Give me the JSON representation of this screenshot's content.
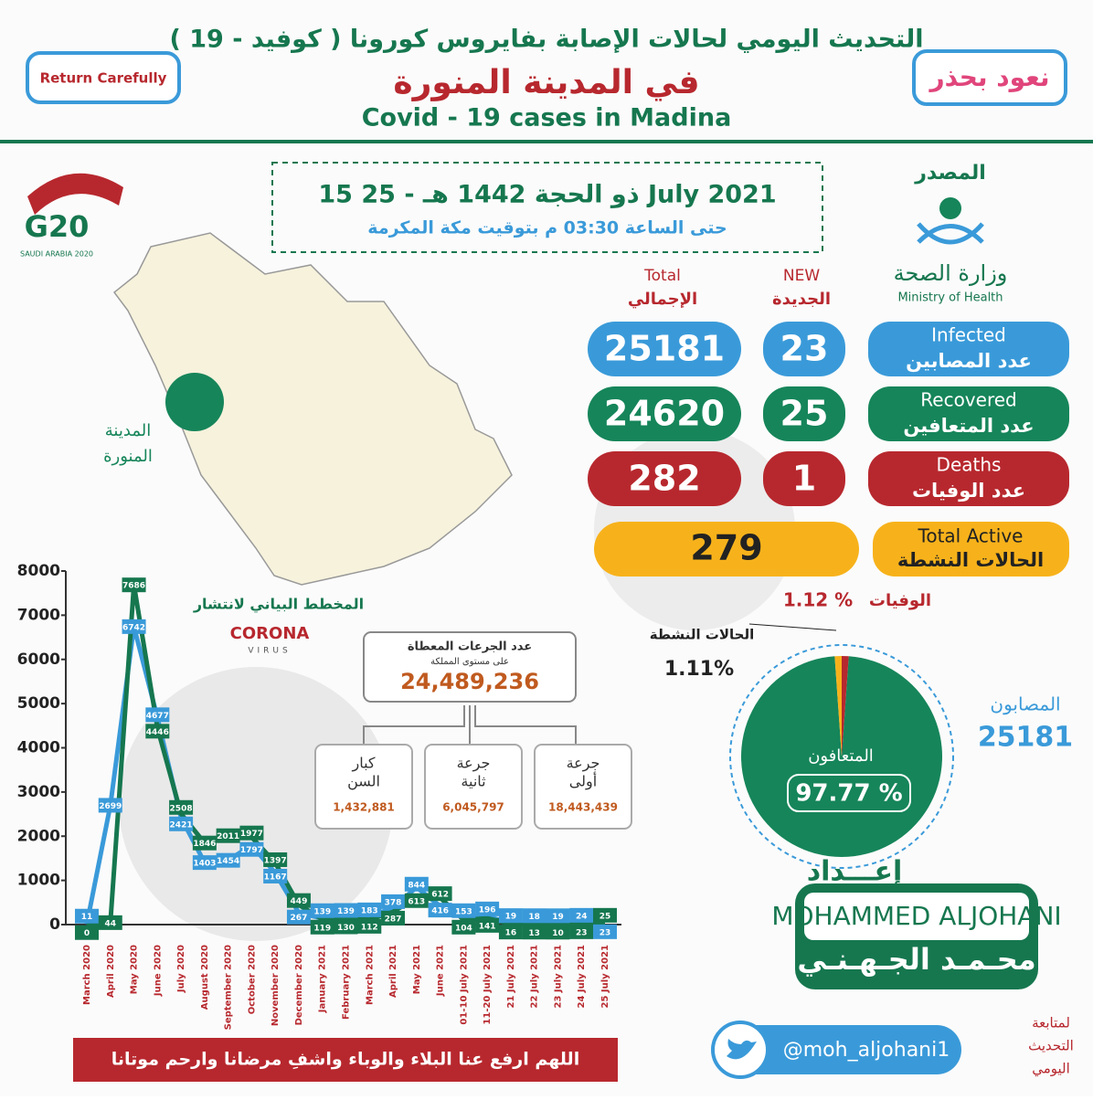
{
  "header": {
    "title_ar": "التحديث اليومي لحالات الإصابة بفايروس كورونا ( كوفيد - 19 )",
    "subtitle_ar": "في المدينة المنورة",
    "title_en": "Covid - 19 cases in Madina",
    "badge_en": "Return Carefully",
    "badge_ar": "نعود بحذر"
  },
  "g20": {
    "logo": "G20",
    "caption": "SAUDI ARABIA 2020"
  },
  "date": {
    "line1": "15 ذو الحجة 1442 هـ - 25 July 2021",
    "line2": "حتى الساعة 03:30 م بتوقيت مكة المكرمة"
  },
  "source": {
    "label": "المصدر",
    "ministry_ar": "وزارة الصحة",
    "ministry_en": "Ministry of Health"
  },
  "map_label": [
    "المدينة",
    "المنورة"
  ],
  "table": {
    "headers": [
      {
        "en": "Total",
        "ar": "الإجمالي"
      },
      {
        "en": "NEW",
        "ar": "الجديدة"
      }
    ],
    "rows": [
      {
        "en": "Infected",
        "ar": "عدد المصابين",
        "total": 25181,
        "new": 23
      },
      {
        "en": "Recovered",
        "ar": "عدد المتعافين",
        "total": 24620,
        "new": 25
      },
      {
        "en": "Deaths",
        "ar": "عدد الوفيات",
        "total": 282,
        "new": 1
      }
    ],
    "active": {
      "en": "Total Active",
      "ar": "الحالات النشطة",
      "total": 279
    }
  },
  "corona_logo": {
    "top": "CORONA",
    "bottom": "VIRUS"
  },
  "chart_data": [
    {
      "type": "line",
      "title": "المخطط البياني لانتشار",
      "categories": [
        "March 2020",
        "April 2020",
        "May 2020",
        "June 2020",
        "July 2020",
        "August 2020",
        "September 2020",
        "October 2020",
        "November 2020",
        "December 2020",
        "January 2021",
        "February 2021",
        "March 2021",
        "April 2021",
        "May 2021",
        "June 2021",
        "01-10 July 2021",
        "11-20 July 2021",
        "21 July 2021",
        "22 July 2021",
        "23 July 2021",
        "24 July 2021",
        "25 July 2021"
      ],
      "series": [
        {
          "color": "#3a9ad9",
          "values": [
            11,
            2699,
            6742,
            4677,
            2421,
            1403,
            1454,
            1797,
            1167,
            267,
            139,
            139,
            183,
            378,
            844,
            416,
            153,
            196,
            19,
            18,
            19,
            24,
            23
          ]
        },
        {
          "color": "#16774f",
          "values": [
            0,
            44,
            7686,
            4446,
            2508,
            1846,
            2011,
            1977,
            1397,
            449,
            119,
            130,
            112,
            287,
            613,
            612,
            104,
            141,
            16,
            13,
            10,
            23,
            25
          ]
        }
      ],
      "ylim": [
        0,
        8000
      ],
      "yticks": [
        0,
        1000,
        2000,
        3000,
        4000,
        5000,
        6000,
        7000,
        8000
      ]
    },
    {
      "type": "pie",
      "categories": [
        "المتعافون",
        "الوفيات",
        "الحالات النشطة"
      ],
      "values": [
        97.77,
        1.12,
        1.11
      ],
      "value_labels": [
        "97.77 %",
        "1.12 %",
        "1.11%"
      ],
      "colors": [
        "#16855a",
        "#b7282e",
        "#f7b21b"
      ]
    }
  ],
  "infected_side": {
    "label": "المصابون",
    "value": 25181
  },
  "vaccines": {
    "title": "عدد الجرعات المعطاة",
    "subtitle": "على مستوى المملكة",
    "total": "24,489,236",
    "items": [
      {
        "label": [
          "كبار",
          "السن"
        ],
        "value": "1,432,881"
      },
      {
        "label": [
          "جرعة",
          "ثانية"
        ],
        "value": "6,045,797"
      },
      {
        "label": [
          "جرعة",
          "أولى"
        ],
        "value": "18,443,439"
      }
    ]
  },
  "author": {
    "heading": "إعـــداد",
    "name_en": "MOHAMMED ALJOHANI",
    "name_ar": "محـمـد الجـهـنـي"
  },
  "twitter": {
    "handle": "@moh_aljohani1",
    "note": [
      "لمتابعة",
      "التحديث",
      "اليومي"
    ]
  },
  "prayer": "اللهم ارفع عنا البلاء والوباء واشفِ مرضانا وارحم موتانا"
}
